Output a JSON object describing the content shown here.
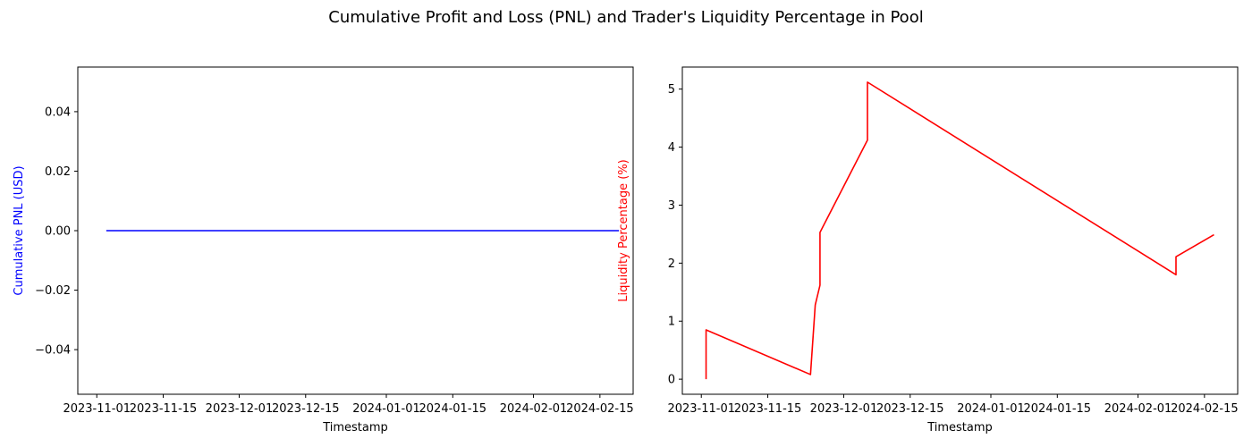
{
  "figure": {
    "title": "Cumulative Profit and Loss (PNL) and Trader's Liquidity Percentage in Pool"
  },
  "chart_data": [
    {
      "type": "line",
      "title": "",
      "xlabel": "Timestamp",
      "ylabel": "Cumulative PNL (USD)",
      "color": "#0000ff",
      "ylabel_color": "#0000ff",
      "xlim": [
        "2023-10-28",
        "2024-02-22"
      ],
      "ylim": [
        -0.055,
        0.055
      ],
      "x_ticks": [
        "2023-11-01",
        "2023-11-15",
        "2023-12-01",
        "2023-12-15",
        "2024-01-01",
        "2024-01-15",
        "2024-02-01",
        "2024-02-15"
      ],
      "y_ticks": [
        -0.04,
        -0.02,
        0.0,
        0.02,
        0.04
      ],
      "y_tick_labels": [
        "−0.04",
        "−0.02",
        "0.00",
        "0.02",
        "0.04"
      ],
      "grid": false,
      "series": [
        {
          "x": [
            "2023-11-03",
            "2024-02-19"
          ],
          "y": [
            0.0,
            0.0
          ]
        }
      ]
    },
    {
      "type": "line",
      "title": "",
      "xlabel": "Timestamp",
      "ylabel": "Liquidity Percentage (%)",
      "color": "#ff0000",
      "ylabel_color": "#ff0000",
      "xlim": [
        "2023-10-28",
        "2024-02-22"
      ],
      "ylim": [
        -0.26,
        5.38
      ],
      "x_ticks": [
        "2023-11-01",
        "2023-11-15",
        "2023-12-01",
        "2023-12-15",
        "2024-01-01",
        "2024-01-15",
        "2024-02-01",
        "2024-02-15"
      ],
      "y_ticks": [
        0,
        1,
        2,
        3,
        4,
        5
      ],
      "y_tick_labels": [
        "0",
        "1",
        "2",
        "3",
        "4",
        "5"
      ],
      "grid": false,
      "series": [
        {
          "x": [
            "2023-11-02",
            "2023-11-02",
            "2023-11-24",
            "2023-11-25",
            "2023-11-26",
            "2023-11-26",
            "2023-12-06",
            "2023-12-06",
            "2024-02-09",
            "2024-02-09",
            "2024-02-17"
          ],
          "y": [
            0.0,
            0.85,
            0.08,
            1.28,
            1.62,
            2.53,
            4.12,
            5.12,
            1.8,
            2.11,
            2.49
          ]
        }
      ]
    }
  ]
}
